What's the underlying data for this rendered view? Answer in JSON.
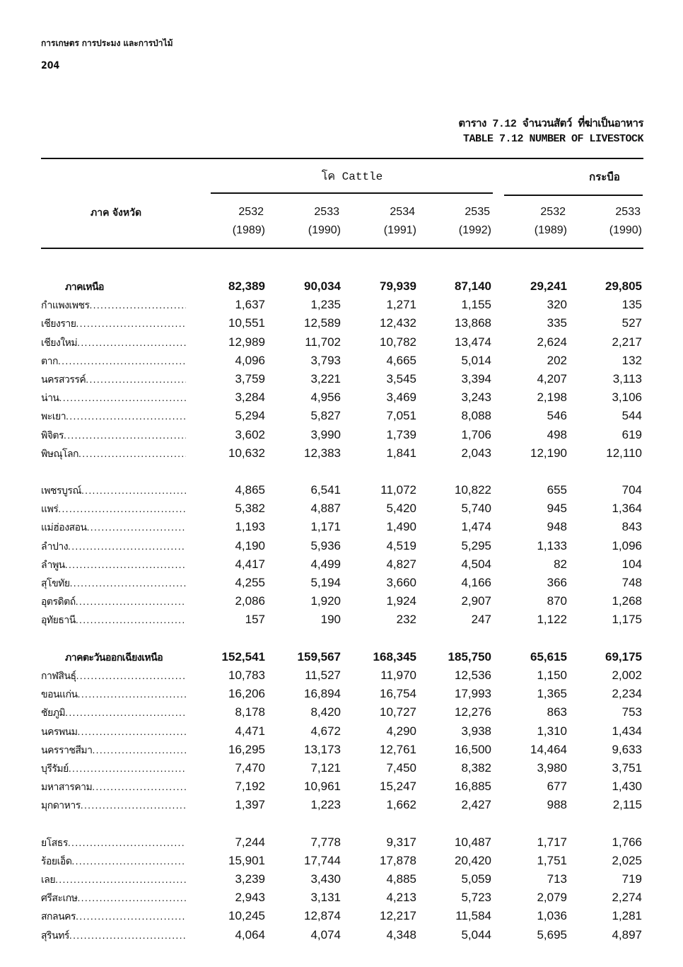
{
  "header": {
    "running_title": "การเกษตร การประมง และการป่าไม้",
    "page_number": "204",
    "table_title_th": "ตาราง 7.12 จำนวนสัตว์ ที่ฆ่าเป็นอาหาร",
    "table_title_en": "TABLE 7.12 NUMBER OF LIVESTOCK"
  },
  "table": {
    "row_header": "ภาค จังหวัด",
    "group_cattle": "โค Cattle",
    "group_buffalo": "กระบือ",
    "columns": [
      {
        "year_th": "2532",
        "year_en": "(1989)"
      },
      {
        "year_th": "2533",
        "year_en": "(1990)"
      },
      {
        "year_th": "2534",
        "year_en": "(1991)"
      },
      {
        "year_th": "2535",
        "year_en": "(1992)"
      },
      {
        "year_th": "2532",
        "year_en": "(1989)"
      },
      {
        "year_th": "2533",
        "year_en": "(1990)"
      }
    ],
    "rows": [
      {
        "name": "ภาคเหนือ",
        "region": true,
        "values": [
          "82,389",
          "90,034",
          "79,939",
          "87,140",
          "29,241",
          "29,805"
        ]
      },
      {
        "name": "กำแพงเพชร",
        "values": [
          "1,637",
          "1,235",
          "1,271",
          "1,155",
          "320",
          "135"
        ]
      },
      {
        "name": "เชียงราย",
        "values": [
          "10,551",
          "12,589",
          "12,432",
          "13,868",
          "335",
          "527"
        ]
      },
      {
        "name": "เชียงใหม่",
        "values": [
          "12,989",
          "11,702",
          "10,782",
          "13,474",
          "2,624",
          "2,217"
        ]
      },
      {
        "name": "ตาก",
        "values": [
          "4,096",
          "3,793",
          "4,665",
          "5,014",
          "202",
          "132"
        ]
      },
      {
        "name": "นครสวรรค์",
        "values": [
          "3,759",
          "3,221",
          "3,545",
          "3,394",
          "4,207",
          "3,113"
        ]
      },
      {
        "name": "น่าน",
        "values": [
          "3,284",
          "4,956",
          "3,469",
          "3,243",
          "2,198",
          "3,106"
        ]
      },
      {
        "name": "พะเยา",
        "values": [
          "5,294",
          "5,827",
          "7,051",
          "8,088",
          "546",
          "544"
        ]
      },
      {
        "name": "พิจิตร",
        "values": [
          "3,602",
          "3,990",
          "1,739",
          "1,706",
          "498",
          "619"
        ]
      },
      {
        "name": "พิษณุโลก",
        "values": [
          "10,632",
          "12,383",
          "1,841",
          "2,043",
          "12,190",
          "12,110"
        ]
      },
      {
        "blank": true
      },
      {
        "name": "เพชรบูรณ์",
        "values": [
          "4,865",
          "6,541",
          "11,072",
          "10,822",
          "655",
          "704"
        ]
      },
      {
        "name": "แพร่",
        "values": [
          "5,382",
          "4,887",
          "5,420",
          "5,740",
          "945",
          "1,364"
        ]
      },
      {
        "name": "แม่ฮ่องสอน",
        "values": [
          "1,193",
          "1,171",
          "1,490",
          "1,474",
          "948",
          "843"
        ]
      },
      {
        "name": "ลำปาง",
        "values": [
          "4,190",
          "5,936",
          "4,519",
          "5,295",
          "1,133",
          "1,096"
        ]
      },
      {
        "name": "ลำพูน",
        "values": [
          "4,417",
          "4,499",
          "4,827",
          "4,504",
          "82",
          "104"
        ]
      },
      {
        "name": "สุโขทัย",
        "values": [
          "4,255",
          "5,194",
          "3,660",
          "4,166",
          "366",
          "748"
        ]
      },
      {
        "name": "อุตรดิตถ์",
        "values": [
          "2,086",
          "1,920",
          "1,924",
          "2,907",
          "870",
          "1,268"
        ]
      },
      {
        "name": "อุทัยธานี",
        "values": [
          "157",
          "190",
          "232",
          "247",
          "1,122",
          "1,175"
        ]
      },
      {
        "blank": true
      },
      {
        "name": "ภาคตะวันออกเฉียงเหนือ",
        "region": true,
        "values": [
          "152,541",
          "159,567",
          "168,345",
          "185,750",
          "65,615",
          "69,175"
        ]
      },
      {
        "name": "กาฬสินธุ์",
        "values": [
          "10,783",
          "11,527",
          "11,970",
          "12,536",
          "1,150",
          "2,002"
        ]
      },
      {
        "name": "ขอนแก่น",
        "values": [
          "16,206",
          "16,894",
          "16,754",
          "17,993",
          "1,365",
          "2,234"
        ]
      },
      {
        "name": "ชัยภูมิ",
        "values": [
          "8,178",
          "8,420",
          "10,727",
          "12,276",
          "863",
          "753"
        ]
      },
      {
        "name": "นครพนม",
        "values": [
          "4,471",
          "4,672",
          "4,290",
          "3,938",
          "1,310",
          "1,434"
        ]
      },
      {
        "name": "นครราชสีมา",
        "values": [
          "16,295",
          "13,173",
          "12,761",
          "16,500",
          "14,464",
          "9,633"
        ]
      },
      {
        "name": "บุรีรัมย์",
        "values": [
          "7,470",
          "7,121",
          "7,450",
          "8,382",
          "3,980",
          "3,751"
        ]
      },
      {
        "name": "มหาสารคาม",
        "values": [
          "7,192",
          "10,961",
          "15,247",
          "16,885",
          "677",
          "1,430"
        ]
      },
      {
        "name": "มุกดาหาร",
        "values": [
          "1,397",
          "1,223",
          "1,662",
          "2,427",
          "988",
          "2,115"
        ]
      },
      {
        "blank": true
      },
      {
        "name": "ยโสธร",
        "values": [
          "7,244",
          "7,778",
          "9,317",
          "10,487",
          "1,717",
          "1,766"
        ]
      },
      {
        "name": "ร้อยเอ็ด",
        "values": [
          "15,901",
          "17,744",
          "17,878",
          "20,420",
          "1,751",
          "2,025"
        ]
      },
      {
        "name": "เลย",
        "values": [
          "3,239",
          "3,430",
          "4,885",
          "5,059",
          "713",
          "719"
        ]
      },
      {
        "name": "ศรีสะเกษ",
        "values": [
          "2,943",
          "3,131",
          "4,213",
          "5,723",
          "2,079",
          "2,274"
        ]
      },
      {
        "name": "สกลนคร",
        "values": [
          "10,245",
          "12,874",
          "12,217",
          "11,584",
          "1,036",
          "1,281"
        ]
      },
      {
        "name": "สุรินทร์",
        "values": [
          "4,064",
          "4,074",
          "4,348",
          "5,044",
          "5,695",
          "4,897"
        ]
      }
    ]
  }
}
